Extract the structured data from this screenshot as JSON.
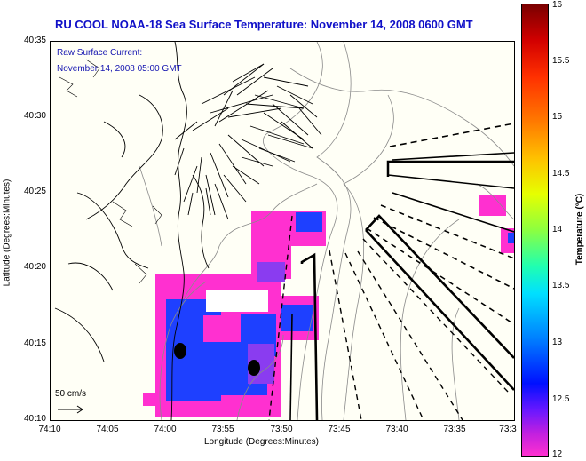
{
  "title": "RU COOL  NOAA-18  Sea Surface Temperature:  November 14, 2008 0600 GMT",
  "subtitle_line1": "Raw Surface Current:",
  "subtitle_line2": "November 14, 2008 05:00 GMT",
  "scale_label": "50 cm/s",
  "x_axis": {
    "label": "Longitude (Degrees:Minutes)",
    "ticks": [
      "74:10",
      "74:05",
      "74:00",
      "73:55",
      "73:50",
      "73:45",
      "73:40",
      "73:35",
      "73:3"
    ]
  },
  "y_axis": {
    "label": "Latitude (Degrees:Minutes)",
    "ticks": [
      "40:35",
      "40:30",
      "40:25",
      "40:20",
      "40:15",
      "40:10"
    ]
  },
  "colorbar": {
    "label": "Temperature (°C)",
    "ticks": [
      "16",
      "15.5",
      "15",
      "14.5",
      "14",
      "13.5",
      "13",
      "12.5",
      "12"
    ],
    "min": 12,
    "max": 16
  },
  "colors": {
    "title": "#1010c8",
    "subtitle": "#1515b0",
    "land": "#fffff6",
    "sst_magenta": "#ff30d0",
    "sst_purple": "#8a3cf0",
    "sst_blue": "#1e40ff"
  }
}
